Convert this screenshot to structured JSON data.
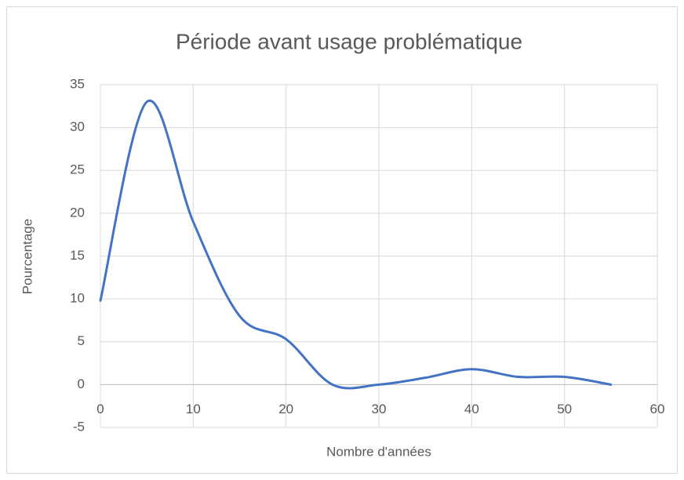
{
  "chart_data": {
    "type": "scatter-smooth-line",
    "title": "Période avant usage problématique",
    "x_label": "Nombre d'années",
    "y_label": "Pourcentage",
    "series": [
      {
        "name": "Pourcentage",
        "color": "#4472c4",
        "x": [
          0,
          5,
          10,
          15,
          20,
          25,
          30,
          35,
          40,
          45,
          50,
          55
        ],
        "values": [
          9.8,
          33,
          19,
          8,
          5.3,
          0,
          0,
          0.8,
          1.8,
          0.9,
          0.9,
          0
        ]
      }
    ],
    "xlim": [
      0,
      60
    ],
    "xticks": [
      0,
      10,
      20,
      30,
      40,
      50,
      60
    ],
    "ylim": [
      -5,
      35
    ],
    "yticks": [
      -5,
      0,
      5,
      10,
      15,
      20,
      25,
      30,
      35
    ],
    "grid": true
  }
}
